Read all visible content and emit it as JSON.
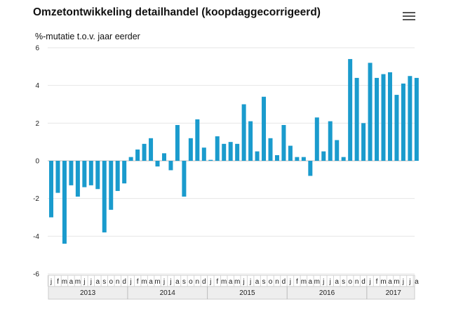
{
  "header": {
    "title": "Omzetontwikkeling detailhandel (koopdaggecorrigeerd)",
    "menu_icon": "hamburger-menu-icon"
  },
  "chart_data": {
    "type": "bar",
    "title": "Omzetontwikkeling detailhandel (koopdaggecorrigeerd)",
    "ylabel": "%-mutatie t.o.v. jaar eerder",
    "xlabel": "",
    "ylim": [
      -6,
      6
    ],
    "yticks": [
      -6,
      -4,
      -2,
      0,
      2,
      4,
      6
    ],
    "grid": true,
    "bar_color": "#1a9bcd",
    "years": [
      "2013",
      "2014",
      "2015",
      "2016",
      "2017"
    ],
    "month_labels": [
      "j",
      "f",
      "m",
      "a",
      "m",
      "j",
      "j",
      "a",
      "s",
      "o",
      "n",
      "d"
    ],
    "categories": [
      "2013-01",
      "2013-02",
      "2013-03",
      "2013-04",
      "2013-05",
      "2013-06",
      "2013-07",
      "2013-08",
      "2013-09",
      "2013-10",
      "2013-11",
      "2013-12",
      "2014-01",
      "2014-02",
      "2014-03",
      "2014-04",
      "2014-05",
      "2014-06",
      "2014-07",
      "2014-08",
      "2014-09",
      "2014-10",
      "2014-11",
      "2014-12",
      "2015-01",
      "2015-02",
      "2015-03",
      "2015-04",
      "2015-05",
      "2015-06",
      "2015-07",
      "2015-08",
      "2015-09",
      "2015-10",
      "2015-11",
      "2015-12",
      "2016-01",
      "2016-02",
      "2016-03",
      "2016-04",
      "2016-05",
      "2016-06",
      "2016-07",
      "2016-08",
      "2016-09",
      "2016-10",
      "2016-11",
      "2016-12",
      "2017-01",
      "2017-02",
      "2017-03",
      "2017-04",
      "2017-05",
      "2017-06",
      "2017-07",
      "2017-08"
    ],
    "values": [
      -3.0,
      -1.7,
      -4.4,
      -1.3,
      -1.9,
      -1.4,
      -1.3,
      -1.5,
      -3.8,
      -2.6,
      -1.6,
      -1.2,
      0.2,
      0.6,
      0.9,
      1.2,
      -0.3,
      0.4,
      -0.5,
      1.9,
      -1.9,
      1.2,
      2.2,
      0.7,
      0.05,
      1.3,
      0.9,
      1.0,
      0.9,
      3.0,
      2.1,
      0.5,
      3.4,
      1.2,
      0.3,
      1.9,
      0.8,
      0.2,
      0.2,
      -0.8,
      2.3,
      0.5,
      2.1,
      1.1,
      0.2,
      5.4,
      4.4,
      2.0,
      5.2,
      4.4,
      4.6,
      4.7,
      3.5,
      4.1,
      4.5,
      4.4
    ]
  }
}
